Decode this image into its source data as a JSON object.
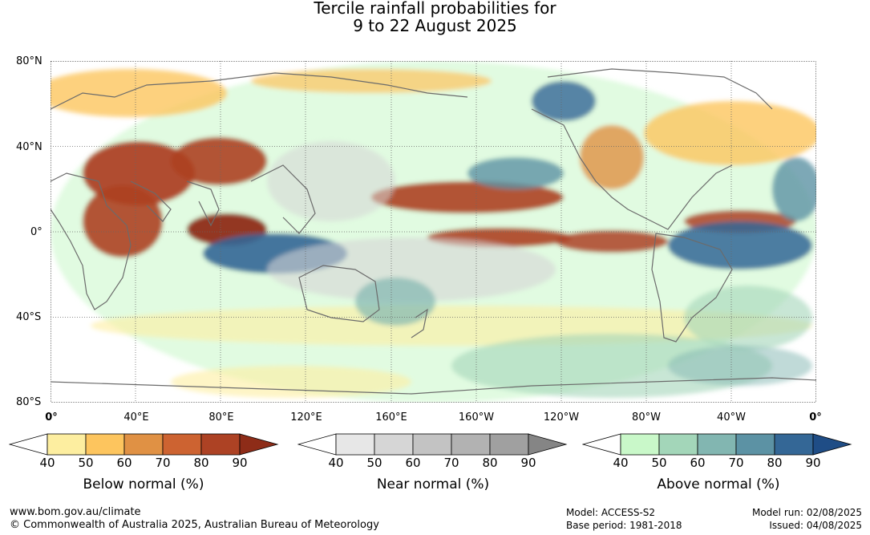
{
  "title_line1": "Tercile rainfall probabilities for",
  "title_line2": "9 to 22 August 2025",
  "lat_labels": [
    "80°N",
    "40°N",
    "0°",
    "40°S",
    "80°S"
  ],
  "lon_labels": [
    "0°",
    "40°E",
    "80°E",
    "120°E",
    "160°E",
    "160°W",
    "120°W",
    "80°W",
    "40°W",
    "0°"
  ],
  "legends": [
    {
      "title": "Below normal (%)",
      "ticks": [
        "40",
        "50",
        "60",
        "70",
        "80",
        "90"
      ],
      "colors": [
        "#fdeea0",
        "#fdc55e",
        "#e09144",
        "#cd6331",
        "#ad4224",
        "#8e2c18"
      ]
    },
    {
      "title": "Near normal (%)",
      "ticks": [
        "40",
        "50",
        "60",
        "70",
        "80",
        "90"
      ],
      "colors": [
        "#e7e7e7",
        "#d6d6d6",
        "#c3c3c3",
        "#b2b2b2",
        "#a0a0a0",
        "#858585"
      ]
    },
    {
      "title": "Above normal (%)",
      "ticks": [
        "40",
        "50",
        "60",
        "70",
        "80",
        "90"
      ],
      "colors": [
        "#c9f8c9",
        "#a3d6b9",
        "#82b6b1",
        "#5c92a4",
        "#346796",
        "#1f4d86"
      ]
    }
  ],
  "footer": {
    "url": "www.bom.gov.au/climate",
    "copyright": "© Commonwealth of Australia 2025, Australian Bureau of Meteorology",
    "model": "Model: ACCESS-S2",
    "base_period": "Base period: 1981-2018",
    "model_run": "Model run: 02/08/2025",
    "issued": "Issued: 04/08/2025"
  }
}
